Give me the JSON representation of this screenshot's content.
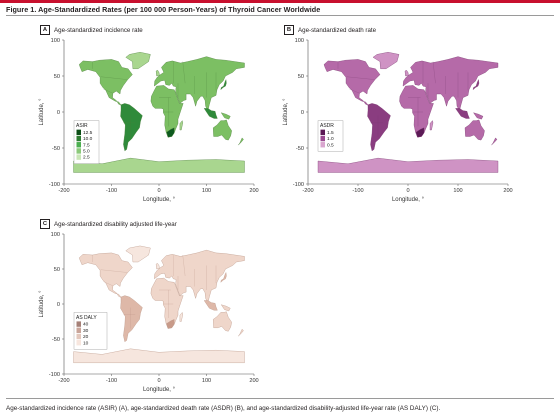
{
  "figure": {
    "title": "Figure 1. Age-Standardized Rates (per 100 000 Person-Years) of Thyroid Cancer Worldwide",
    "caption": "Age-standardized incidence rate (ASIR) (A), age-standardized death rate (ASDR) (B), and age-standardized disability-adjusted life-year rate (AS DALY) (C).",
    "accent_color": "#c8102e"
  },
  "chart_data": [
    {
      "type": "map",
      "panel": "A",
      "title": "Age-standardized incidence rate",
      "xlabel": "Longitude, °",
      "ylabel": "Latitude, °",
      "xlim": [
        -200,
        200
      ],
      "ylim": [
        -100,
        100
      ],
      "xticks": [
        "-200",
        "-100",
        "0",
        "100",
        "200"
      ],
      "yticks": [
        "100",
        "50",
        "0",
        "-50",
        "-100"
      ],
      "legend": {
        "title": "ASIR",
        "position": "lower-left",
        "labels": [
          "12.5",
          "10.0",
          "7.5",
          "5.0",
          "2.5"
        ],
        "colors": [
          "#0b4d16",
          "#2e7d32",
          "#4caf50",
          "#8bc97a",
          "#c9e6b7"
        ]
      },
      "palette": {
        "land": "#7cbf63",
        "light": "#a9d68f",
        "dark": "#2f8a3a",
        "darkest": "#0d5a1f",
        "border": "#4a7c3a"
      }
    },
    {
      "type": "map",
      "panel": "B",
      "title": "Age-standardized death rate",
      "xlabel": "Longitude, °",
      "ylabel": "Latitude, °",
      "xlim": [
        -200,
        200
      ],
      "ylim": [
        -100,
        100
      ],
      "xticks": [
        "-200",
        "-100",
        "0",
        "100",
        "200"
      ],
      "yticks": [
        "100",
        "50",
        "0",
        "-50",
        "-100"
      ],
      "legend": {
        "title": "ASDR",
        "position": "lower-left",
        "labels": [
          "1.5",
          "1.0",
          "0.5"
        ],
        "colors": [
          "#5c1a56",
          "#9b4a91",
          "#d9a6cf"
        ]
      },
      "palette": {
        "land": "#b56aa8",
        "light": "#cf93c4",
        "dark": "#8a3d80",
        "darkest": "#5c1a56",
        "border": "#7a3a70"
      }
    },
    {
      "type": "map",
      "panel": "C",
      "title": "Age-standardized disability adjusted life-year",
      "xlabel": "Longitude, °",
      "ylabel": "Latitude, °",
      "xlim": [
        -200,
        200
      ],
      "ylim": [
        -100,
        100
      ],
      "xticks": [
        "-200",
        "-100",
        "0",
        "100",
        "200"
      ],
      "yticks": [
        "100",
        "50",
        "0",
        "-50",
        "-100"
      ],
      "legend": {
        "title": "AS DALY",
        "position": "lower-left",
        "labels": [
          "40",
          "30",
          "20",
          "10"
        ],
        "colors": [
          "#a58077",
          "#c9a59a",
          "#e3c8bd",
          "#f7e6de"
        ]
      },
      "palette": {
        "land": "#efd6ca",
        "light": "#f6e6de",
        "dark": "#deb8a8",
        "darkest": "#c89a89",
        "border": "#b89384"
      }
    }
  ]
}
